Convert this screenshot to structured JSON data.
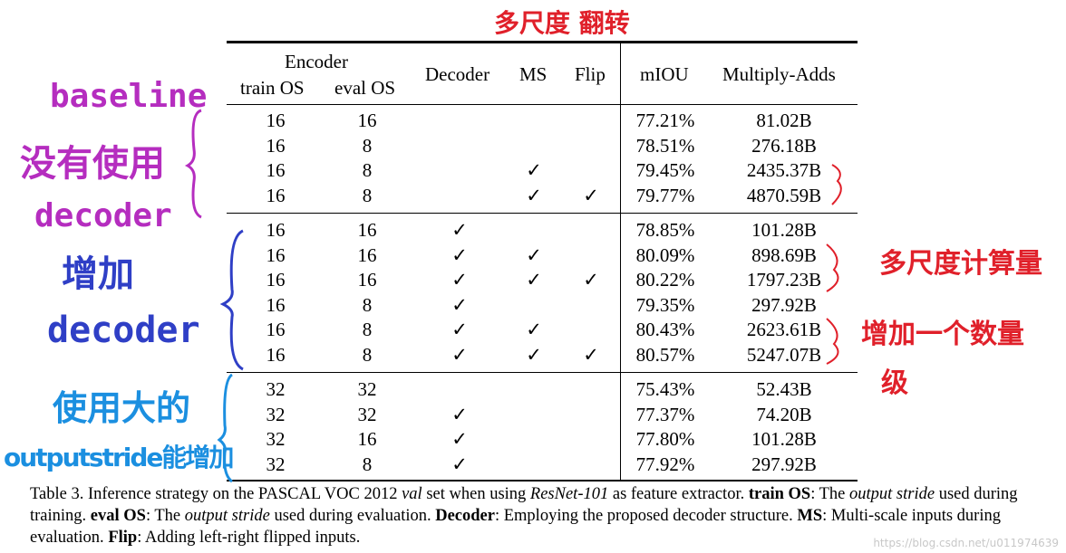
{
  "table": {
    "header": {
      "encoder": "Encoder",
      "train_os": "train OS",
      "eval_os": "eval OS",
      "decoder": "Decoder",
      "ms": "MS",
      "flip": "Flip",
      "miou": "mIOU",
      "madds": "Multiply-Adds"
    },
    "check_symbol": "✓",
    "groups": [
      [
        {
          "train": "16",
          "eval": "16",
          "decoder": false,
          "ms": false,
          "flip": false,
          "miou": "77.21%",
          "madds": "81.02B"
        },
        {
          "train": "16",
          "eval": "8",
          "decoder": false,
          "ms": false,
          "flip": false,
          "miou": "78.51%",
          "madds": "276.18B"
        },
        {
          "train": "16",
          "eval": "8",
          "decoder": false,
          "ms": true,
          "flip": false,
          "miou": "79.45%",
          "madds": "2435.37B"
        },
        {
          "train": "16",
          "eval": "8",
          "decoder": false,
          "ms": true,
          "flip": true,
          "miou": "79.77%",
          "madds": "4870.59B"
        }
      ],
      [
        {
          "train": "16",
          "eval": "16",
          "decoder": true,
          "ms": false,
          "flip": false,
          "miou": "78.85%",
          "madds": "101.28B"
        },
        {
          "train": "16",
          "eval": "16",
          "decoder": true,
          "ms": true,
          "flip": false,
          "miou": "80.09%",
          "madds": "898.69B"
        },
        {
          "train": "16",
          "eval": "16",
          "decoder": true,
          "ms": true,
          "flip": true,
          "miou": "80.22%",
          "madds": "1797.23B"
        },
        {
          "train": "16",
          "eval": "8",
          "decoder": true,
          "ms": false,
          "flip": false,
          "miou": "79.35%",
          "madds": "297.92B"
        },
        {
          "train": "16",
          "eval": "8",
          "decoder": true,
          "ms": true,
          "flip": false,
          "miou": "80.43%",
          "madds": "2623.61B"
        },
        {
          "train": "16",
          "eval": "8",
          "decoder": true,
          "ms": true,
          "flip": true,
          "miou": "80.57%",
          "madds": "5247.07B"
        }
      ],
      [
        {
          "train": "32",
          "eval": "32",
          "decoder": false,
          "ms": false,
          "flip": false,
          "miou": "75.43%",
          "madds": "52.43B"
        },
        {
          "train": "32",
          "eval": "32",
          "decoder": true,
          "ms": false,
          "flip": false,
          "miou": "77.37%",
          "madds": "74.20B"
        },
        {
          "train": "32",
          "eval": "16",
          "decoder": true,
          "ms": false,
          "flip": false,
          "miou": "77.80%",
          "madds": "101.28B"
        },
        {
          "train": "32",
          "eval": "8",
          "decoder": true,
          "ms": false,
          "flip": false,
          "miou": "77.92%",
          "madds": "297.92B"
        }
      ]
    ]
  },
  "caption": {
    "t1": "Table 3. Inference strategy on the PASCAL VOC 2012 ",
    "t2": "val",
    "t3": " set when using ",
    "t4": "ResNet-101",
    "t5": " as feature extractor. ",
    "t6": "train OS",
    "t7": ": The ",
    "t8": "output stride",
    "t9": " used during training. ",
    "t10": "eval OS",
    "t11": ": The ",
    "t12": "output stride",
    "t13": " used during evaluation. ",
    "t14": "Decoder",
    "t15": ": Employing the proposed decoder structure. ",
    "t16": "MS",
    "t17": ": Multi-scale inputs during evaluation. ",
    "t18": "Flip",
    "t19": ": Adding left-right flipped inputs."
  },
  "annotations": {
    "top_red": "多尺度 翻转",
    "baseline_1": "baseline",
    "baseline_2": "没有使用",
    "baseline_3": "decoder",
    "decoder_1": "增加",
    "decoder_2": "decoder",
    "stride_1": "使用大的",
    "stride_2": "outputstride能增加",
    "right_red_1": "多尺度计算量",
    "right_red_2": "增加一个数量",
    "right_red_3": "级"
  },
  "watermark": "https://blog.csdn.net/u011974639",
  "colors": {
    "red": "#e0202a",
    "magenta": "#b52dbf",
    "blue": "#2f3fc6",
    "cyan": "#1b8fe0"
  }
}
